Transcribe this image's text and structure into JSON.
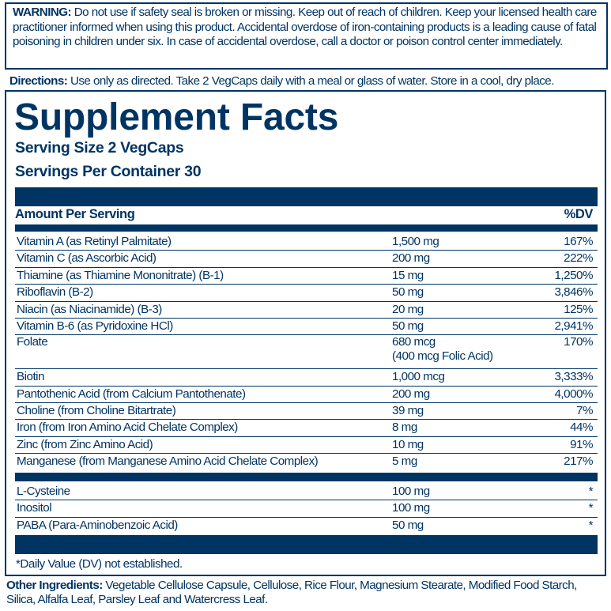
{
  "warning": {
    "label": "WARNING:",
    "text": " Do not use if safety seal is broken or missing. Keep out of reach of children. Keep your licensed health care practitioner informed when using this product. Accidental overdose of iron-containing products is a leading cause of fatal poisoning in children under six. In case of accidental overdose, call a doctor or poison control center immediately."
  },
  "directions": {
    "label": "Directions:",
    "text": " Use only as directed. Take 2 VegCaps daily with a meal or glass of water. Store in a cool, dry place."
  },
  "facts": {
    "title": "Supplement Facts",
    "serving_size": "Serving Size 2 VegCaps",
    "servings_per_container": "Servings Per Container 30",
    "header": {
      "amount": "Amount Per Serving",
      "dv": "%DV"
    },
    "nutrients": [
      {
        "name": "Vitamin A (as Retinyl Palmitate)",
        "amount": "1,500 mg",
        "dv": "167%"
      },
      {
        "name": "Vitamin C (as Ascorbic Acid)",
        "amount": "200 mg",
        "dv": "222%"
      },
      {
        "name": "Thiamine (as Thiamine Mononitrate) (B-1)",
        "amount": "15 mg",
        "dv": "1,250%"
      },
      {
        "name": "Riboflavin (B-2)",
        "amount": "50 mg",
        "dv": "3,846%"
      },
      {
        "name": "Niacin (as Niacinamide) (B-3)",
        "amount": "20 mg",
        "dv": "125%"
      },
      {
        "name": "Vitamin B-6 (as Pyridoxine HCl)",
        "amount": "50 mg",
        "dv": "2,941%"
      },
      {
        "name": "Folate",
        "amount": "680 mcg",
        "amount2": "(400 mcg Folic Acid)",
        "dv": "170%"
      },
      {
        "name": "Biotin",
        "amount": "1,000 mcg",
        "dv": "3,333%"
      },
      {
        "name": "Pantothenic Acid (from Calcium Pantothenate)",
        "amount": "200 mg",
        "dv": "4,000%"
      },
      {
        "name": "Choline (from Choline Bitartrate)",
        "amount": "39 mg",
        "dv": "7%"
      },
      {
        "name": "Iron (from Iron Amino Acid Chelate Complex)",
        "amount": "8 mg",
        "dv": "44%"
      },
      {
        "name": "Zinc (from Zinc Amino Acid)",
        "amount": "10 mg",
        "dv": "91%"
      },
      {
        "name": "Manganese (from Manganese Amino Acid Chelate Complex)",
        "amount": "5 mg",
        "dv": "217%"
      }
    ],
    "others": [
      {
        "name": "L-Cysteine",
        "amount": "100 mg",
        "dv": "*"
      },
      {
        "name": "Inositol",
        "amount": "100 mg",
        "dv": "*"
      },
      {
        "name": "PABA (Para-Aminobenzoic Acid)",
        "amount": "50 mg",
        "dv": "*"
      }
    ],
    "footnote": "*Daily Value (DV) not established."
  },
  "other_ingredients": {
    "label": "Other Ingredients:",
    "text": " Vegetable Cellulose Capsule, Cellulose, Rice Flour, Magnesium Stearate, Modified Food Starch, Silica, Alfalfa Leaf, Parsley Leaf and Watercress Leaf."
  },
  "colors": {
    "brand": "#003463"
  }
}
